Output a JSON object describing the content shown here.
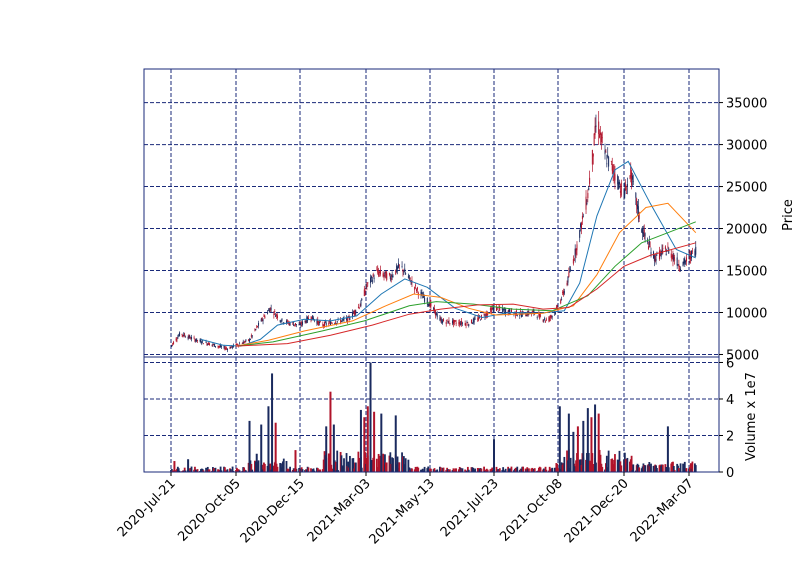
{
  "chart_data": {
    "type": "candlestick",
    "x_tick_labels": [
      "2020-Jul-21",
      "2020-Oct-05",
      "2020-Dec-15",
      "2021-Mar-03",
      "2021-May-13",
      "2021-Jul-23",
      "2021-Oct-08",
      "2021-Dec-20",
      "2022-Mar-07"
    ],
    "date_range": [
      "2020-Jul-21",
      "2022-Mar-15"
    ],
    "colors": {
      "up": "#1a2a5e",
      "down": "#b0132a",
      "grid": "#1a2a7a",
      "frame": "#1a2a7a",
      "mav": [
        "#1f77b4",
        "#ff7f0e",
        "#2ca02c",
        "#d62728"
      ]
    },
    "price_panel": {
      "ylabel": "Price",
      "ylim": [
        4700,
        39000
      ],
      "yticks": [
        5000,
        10000,
        15000,
        20000,
        25000,
        30000,
        35000
      ],
      "grid": true,
      "close_path": [
        [
          "2020-07-21",
          6000
        ],
        [
          "2020-08-01",
          7500
        ],
        [
          "2020-08-20",
          6700
        ],
        [
          "2020-09-10",
          6100
        ],
        [
          "2020-09-25",
          5700
        ],
        [
          "2020-10-05",
          6100
        ],
        [
          "2020-10-20",
          6700
        ],
        [
          "2020-10-30",
          8500
        ],
        [
          "2020-11-12",
          10500
        ],
        [
          "2020-11-25",
          9000
        ],
        [
          "2020-12-05",
          8700
        ],
        [
          "2020-12-15",
          8500
        ],
        [
          "2020-12-28",
          9500
        ],
        [
          "2021-01-10",
          8500
        ],
        [
          "2021-01-25",
          8900
        ],
        [
          "2021-02-10",
          9200
        ],
        [
          "2021-02-25",
          11000
        ],
        [
          "2021-03-03",
          13000
        ],
        [
          "2021-03-15",
          14800
        ],
        [
          "2021-03-30",
          14200
        ],
        [
          "2021-04-10",
          15600
        ],
        [
          "2021-04-20",
          14000
        ],
        [
          "2021-04-30",
          12500
        ],
        [
          "2021-05-13",
          11000
        ],
        [
          "2021-05-25",
          9000
        ],
        [
          "2021-06-10",
          8800
        ],
        [
          "2021-06-25",
          8700
        ],
        [
          "2021-07-10",
          9500
        ],
        [
          "2021-07-23",
          10500
        ],
        [
          "2021-08-05",
          10200
        ],
        [
          "2021-08-25",
          9800
        ],
        [
          "2021-09-10",
          10000
        ],
        [
          "2021-09-25",
          9000
        ],
        [
          "2021-10-08",
          10500
        ],
        [
          "2021-10-18",
          13500
        ],
        [
          "2021-10-28",
          17500
        ],
        [
          "2021-11-10",
          24000
        ],
        [
          "2021-11-20",
          33000
        ],
        [
          "2021-11-28",
          29000
        ],
        [
          "2021-12-08",
          27000
        ],
        [
          "2021-12-20",
          24000
        ],
        [
          "2021-12-28",
          26500
        ],
        [
          "2022-01-10",
          20000
        ],
        [
          "2022-01-25",
          16500
        ],
        [
          "2022-02-10",
          17500
        ],
        [
          "2022-02-25",
          15500
        ],
        [
          "2022-03-07",
          16500
        ],
        [
          "2022-03-15",
          17500
        ]
      ],
      "mav": [
        {
          "window": "short",
          "points": [
            [
              "2020-08-25",
              6800
            ],
            [
              "2020-09-20",
              6100
            ],
            [
              "2020-10-10",
              6000
            ],
            [
              "2020-11-01",
              6800
            ],
            [
              "2020-11-20",
              8500
            ],
            [
              "2020-12-20",
              9200
            ],
            [
              "2021-01-20",
              9000
            ],
            [
              "2021-02-20",
              9600
            ],
            [
              "2021-03-20",
              12200
            ],
            [
              "2021-04-15",
              14000
            ],
            [
              "2021-05-10",
              13000
            ],
            [
              "2021-06-10",
              10500
            ],
            [
              "2021-07-10",
              9400
            ],
            [
              "2021-08-10",
              10000
            ],
            [
              "2021-09-15",
              9900
            ],
            [
              "2021-10-15",
              10200
            ],
            [
              "2021-11-01",
              13500
            ],
            [
              "2021-11-20",
              21500
            ],
            [
              "2021-12-10",
              27000
            ],
            [
              "2021-12-25",
              28000
            ],
            [
              "2022-01-20",
              23000
            ],
            [
              "2022-02-20",
              17500
            ],
            [
              "2022-03-15",
              16500
            ]
          ]
        },
        {
          "window": "medium",
          "points": [
            [
              "2020-10-05",
              6000
            ],
            [
              "2020-11-10",
              6700
            ],
            [
              "2020-12-20",
              7800
            ],
            [
              "2021-02-15",
              9000
            ],
            [
              "2021-03-25",
              10800
            ],
            [
              "2021-04-25",
              12200
            ],
            [
              "2021-05-25",
              11800
            ],
            [
              "2021-06-25",
              10500
            ],
            [
              "2021-07-25",
              9700
            ],
            [
              "2021-09-20",
              9900
            ],
            [
              "2021-10-25",
              10800
            ],
            [
              "2021-11-20",
              14500
            ],
            [
              "2021-12-15",
              19500
            ],
            [
              "2022-01-15",
              22500
            ],
            [
              "2022-02-10",
              23000
            ],
            [
              "2022-03-15",
              19500
            ]
          ]
        },
        {
          "window": "long",
          "points": [
            [
              "2020-10-05",
              6000
            ],
            [
              "2020-11-15",
              6500
            ],
            [
              "2021-01-10",
              7800
            ],
            [
              "2021-03-01",
              9000
            ],
            [
              "2021-04-20",
              10800
            ],
            [
              "2021-05-20",
              11300
            ],
            [
              "2021-06-30",
              11000
            ],
            [
              "2021-08-15",
              10400
            ],
            [
              "2021-10-01",
              10200
            ],
            [
              "2021-11-10",
              12000
            ],
            [
              "2021-12-10",
              15500
            ],
            [
              "2022-01-10",
              18300
            ],
            [
              "2022-02-10",
              19500
            ],
            [
              "2022-03-15",
              20800
            ]
          ]
        },
        {
          "window": "longest",
          "points": [
            [
              "2020-10-05",
              6000
            ],
            [
              "2020-12-01",
              6300
            ],
            [
              "2021-01-20",
              7300
            ],
            [
              "2021-03-10",
              8500
            ],
            [
              "2021-04-20",
              9800
            ],
            [
              "2021-05-25",
              10400
            ],
            [
              "2021-07-05",
              10900
            ],
            [
              "2021-08-15",
              11000
            ],
            [
              "2021-09-20",
              10400
            ],
            [
              "2021-10-20",
              10600
            ],
            [
              "2021-11-20",
              12800
            ],
            [
              "2021-12-20",
              15500
            ],
            [
              "2022-01-20",
              16800
            ],
            [
              "2022-03-15",
              18300
            ]
          ]
        }
      ]
    },
    "volume_panel": {
      "ylabel": "Volume x 1e7",
      "ylim": [
        0,
        6.3
      ],
      "yticks": [
        0,
        2,
        4,
        6
      ],
      "grid": true,
      "spikes": [
        [
          "2020-07-25",
          0.6,
          "down"
        ],
        [
          "2020-08-10",
          0.7,
          "up"
        ],
        [
          "2020-10-20",
          2.8,
          "up"
        ],
        [
          "2020-10-28",
          1.0,
          "up"
        ],
        [
          "2020-11-02",
          2.6,
          "up"
        ],
        [
          "2020-11-10",
          3.6,
          "up"
        ],
        [
          "2020-11-14",
          5.4,
          "up"
        ],
        [
          "2020-11-18",
          2.7,
          "down"
        ],
        [
          "2020-12-10",
          1.2,
          "down"
        ],
        [
          "2021-01-15",
          2.5,
          "up"
        ],
        [
          "2021-01-20",
          4.4,
          "down"
        ],
        [
          "2021-01-24",
          2.6,
          "up"
        ],
        [
          "2021-02-25",
          3.4,
          "up"
        ],
        [
          "2021-03-01",
          3.0,
          "down"
        ],
        [
          "2021-03-05",
          3.6,
          "down"
        ],
        [
          "2021-03-08",
          6.0,
          "up"
        ],
        [
          "2021-03-12",
          3.3,
          "down"
        ],
        [
          "2021-03-20",
          3.2,
          "up"
        ],
        [
          "2021-04-05",
          3.1,
          "up"
        ],
        [
          "2021-07-23",
          1.8,
          "up"
        ],
        [
          "2021-10-10",
          3.6,
          "up"
        ],
        [
          "2021-10-20",
          3.2,
          "up"
        ],
        [
          "2021-10-25",
          2.2,
          "up"
        ],
        [
          "2021-10-30",
          2.5,
          "down"
        ],
        [
          "2021-11-05",
          2.8,
          "up"
        ],
        [
          "2021-11-10",
          3.5,
          "up"
        ],
        [
          "2021-11-14",
          3.0,
          "down"
        ],
        [
          "2021-11-18",
          3.7,
          "up"
        ],
        [
          "2021-11-22",
          3.2,
          "down"
        ],
        [
          "2022-02-10",
          2.5,
          "up"
        ]
      ]
    }
  }
}
